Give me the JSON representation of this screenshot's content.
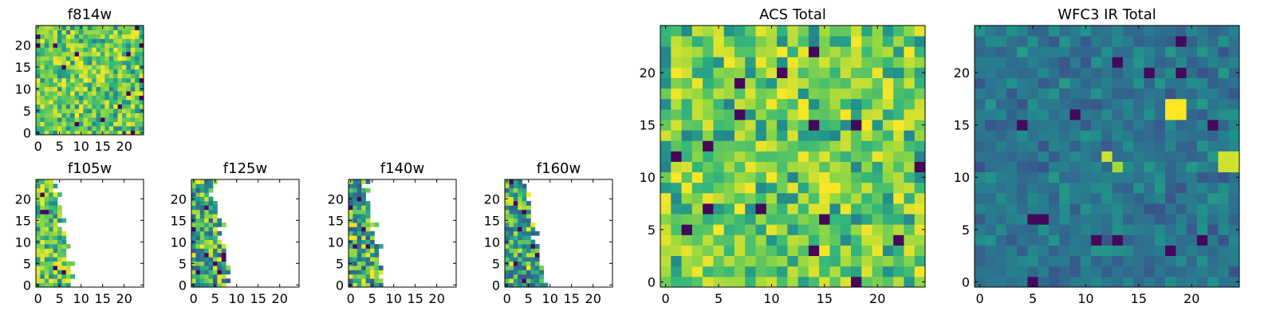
{
  "chart_data": [
    {
      "id": "f814w",
      "type": "heatmap",
      "title": "f814w",
      "xlabel": "",
      "ylabel": "",
      "xlim": [
        -0.5,
        24.5
      ],
      "ylim": [
        -0.5,
        24.5
      ],
      "xticks": [
        0,
        5,
        10,
        15,
        20
      ],
      "yticks": [
        0,
        5,
        10,
        15,
        20
      ],
      "grid_size": 25,
      "colormap": "viridis",
      "coverage": "full",
      "value_range": [
        0,
        1
      ],
      "distribution": "bright"
    },
    {
      "id": "f105w",
      "type": "heatmap",
      "title": "f105w",
      "xlabel": "",
      "ylabel": "",
      "xlim": [
        -0.5,
        24.5
      ],
      "ylim": [
        -0.5,
        24.5
      ],
      "xticks": [
        0,
        5,
        10,
        15,
        20
      ],
      "yticks": [
        0,
        5,
        10,
        15,
        20
      ],
      "grid_size": 25,
      "colormap": "viridis",
      "coverage": "partial",
      "edge_top": 4.5,
      "edge_bottom": 8.5,
      "value_range": [
        0,
        1
      ],
      "distribution": "bright"
    },
    {
      "id": "f125w",
      "type": "heatmap",
      "title": "f125w",
      "xlabel": "",
      "ylabel": "",
      "xlim": [
        -0.5,
        24.5
      ],
      "ylim": [
        -0.5,
        24.5
      ],
      "xticks": [
        0,
        5,
        10,
        15,
        20
      ],
      "yticks": [
        0,
        5,
        10,
        15,
        20
      ],
      "grid_size": 25,
      "colormap": "viridis",
      "coverage": "partial",
      "edge_top": 4.5,
      "edge_bottom": 9.5,
      "value_range": [
        0,
        1
      ],
      "distribution": "mixed"
    },
    {
      "id": "f140w",
      "type": "heatmap",
      "title": "f140w",
      "xlabel": "",
      "ylabel": "",
      "xlim": [
        -0.5,
        24.5
      ],
      "ylim": [
        -0.5,
        24.5
      ],
      "xticks": [
        0,
        5,
        10,
        15,
        20
      ],
      "yticks": [
        0,
        5,
        10,
        15,
        20
      ],
      "grid_size": 25,
      "colormap": "viridis",
      "coverage": "partial",
      "edge_top": 3.5,
      "edge_bottom": 8.5,
      "value_range": [
        0,
        1
      ],
      "distribution": "mixed"
    },
    {
      "id": "f160w",
      "type": "heatmap",
      "title": "f160w",
      "xlabel": "",
      "ylabel": "",
      "xlim": [
        -0.5,
        24.5
      ],
      "ylim": [
        -0.5,
        24.5
      ],
      "xticks": [
        0,
        5,
        10,
        15,
        20
      ],
      "yticks": [
        0,
        5,
        10,
        15,
        20
      ],
      "grid_size": 25,
      "colormap": "viridis",
      "coverage": "partial",
      "edge_top": 4.5,
      "edge_bottom": 9.5,
      "value_range": [
        0,
        1
      ],
      "distribution": "mixed"
    },
    {
      "id": "acs-total",
      "type": "heatmap",
      "title": "ACS Total",
      "xlabel": "",
      "ylabel": "",
      "xlim": [
        -0.5,
        24.5
      ],
      "ylim": [
        -0.5,
        24.5
      ],
      "xticks": [
        0,
        5,
        10,
        15,
        20
      ],
      "yticks": [
        0,
        5,
        10,
        15,
        20
      ],
      "grid_size": 25,
      "colormap": "viridis",
      "coverage": "full",
      "value_range": [
        0,
        1
      ],
      "distribution": "bright"
    },
    {
      "id": "wfc3-ir-total",
      "type": "heatmap",
      "title": "WFC3 IR Total",
      "xlabel": "",
      "ylabel": "",
      "xlim": [
        -0.5,
        24.5
      ],
      "ylim": [
        -0.5,
        24.5
      ],
      "xticks": [
        0,
        5,
        10,
        15,
        20
      ],
      "yticks": [
        0,
        5,
        10,
        15,
        20
      ],
      "grid_size": 25,
      "colormap": "viridis",
      "coverage": "full",
      "value_range": [
        0,
        1
      ],
      "distribution": "dark",
      "bright_spots": [
        {
          "x": 18,
          "y": 16,
          "w": 2,
          "h": 2,
          "value": 1.0
        },
        {
          "x": 12,
          "y": 12,
          "w": 1,
          "h": 1,
          "value": 0.95
        },
        {
          "x": 13,
          "y": 11,
          "w": 1,
          "h": 1,
          "value": 0.9
        },
        {
          "x": 23,
          "y": 11,
          "w": 2,
          "h": 2,
          "value": 0.95
        }
      ]
    }
  ]
}
